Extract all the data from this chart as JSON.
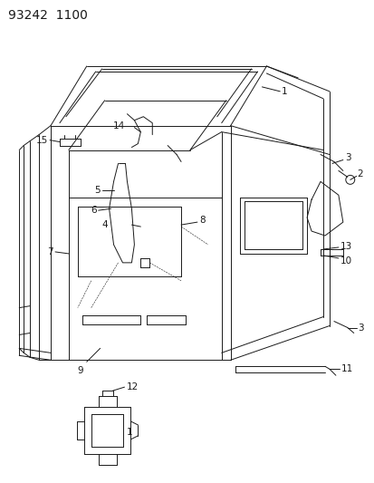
{
  "title": "93242  1100",
  "bg_color": "#ffffff",
  "line_color": "#1a1a1a",
  "title_fontsize": 10,
  "label_fontsize": 7.5,
  "figsize": [
    4.14,
    5.33
  ],
  "dpi": 100
}
